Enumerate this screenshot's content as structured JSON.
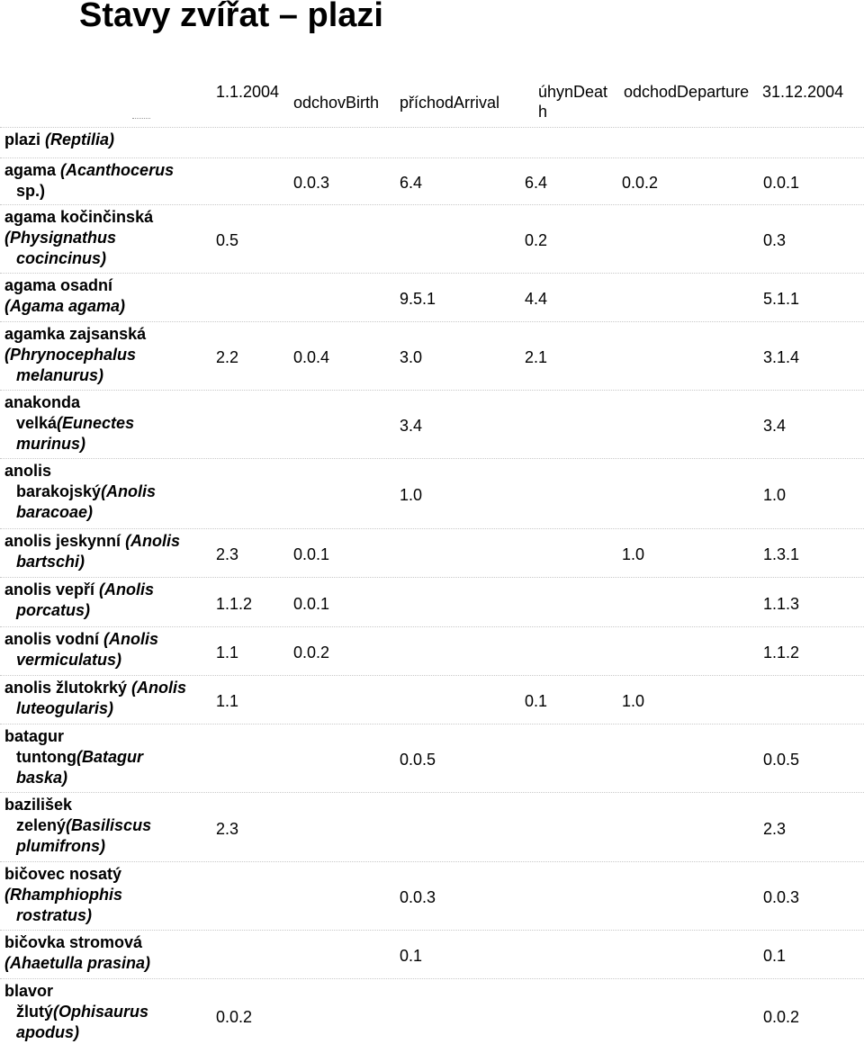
{
  "page": {
    "title": "Stavy zvířat – plazi"
  },
  "header": {
    "start": "1.1.2004",
    "birth": "odchovBirth",
    "arrival": "příchodArrival",
    "death": "úhynDeath",
    "departure": "odchodDeparture",
    "end": "31.12.2004"
  },
  "rows": [
    {
      "name": "plazi (Reptilia)",
      "start": "",
      "birth": "",
      "arrival": "",
      "death": "",
      "departure": "",
      "end": ""
    },
    {
      "name": "agama (Acanthocerus sp.)",
      "start": "",
      "birth": "0.0.3",
      "arrival": "6.4",
      "death": "6.4",
      "departure": "0.0.2",
      "end": "0.0.1"
    },
    {
      "name": "agama kočinčinská (Physignathus cocincinus)",
      "start": "0.5",
      "birth": "",
      "arrival": "",
      "death": "0.2",
      "departure": "",
      "end": "0.3"
    },
    {
      "name": "agama osadní (Agama agama)",
      "start": "",
      "birth": "",
      "arrival": "9.5.1",
      "death": "4.4",
      "departure": "",
      "end": "5.1.1"
    },
    {
      "name": "agamka zajsanská (Phrynocephalus melanurus)",
      "start": "2.2",
      "birth": "0.0.4",
      "arrival": "3.0",
      "death": "2.1",
      "departure": "",
      "end": "3.1.4"
    },
    {
      "name": "anakonda velká(Eunectes murinus)",
      "start": "",
      "birth": "",
      "arrival": "3.4",
      "death": "",
      "departure": "",
      "end": "3.4"
    },
    {
      "name": "anolis barakojský(Anolis baracoae)",
      "start": "",
      "birth": "",
      "arrival": "1.0",
      "death": "",
      "departure": "",
      "end": "1.0"
    },
    {
      "name": "anolis jeskynní (Anolis bartschi)",
      "start": "2.3",
      "birth": "0.0.1",
      "arrival": "",
      "death": "",
      "departure": "1.0",
      "end": "1.3.1"
    },
    {
      "name": "anolis vepří (Anolis porcatus)",
      "start": "1.1.2",
      "birth": "0.0.1",
      "arrival": "",
      "death": "",
      "departure": "",
      "end": "1.1.3"
    },
    {
      "name": "anolis vodní (Anolis vermiculatus)",
      "start": "1.1",
      "birth": "0.0.2",
      "arrival": "",
      "death": "",
      "departure": "",
      "end": "1.1.2"
    },
    {
      "name": "anolis žlutokrký (Anolis luteogularis)",
      "start": "1.1",
      "birth": "",
      "arrival": "",
      "death": "0.1",
      "departure": "1.0",
      "end": ""
    },
    {
      "name": "batagur tuntong(Batagur baska)",
      "start": "",
      "birth": "",
      "arrival": "0.0.5",
      "death": "",
      "departure": "",
      "end": "0.0.5"
    },
    {
      "name": "bazilišek zelený(Basiliscus plumifrons)",
      "start": "2.3",
      "birth": "",
      "arrival": "",
      "death": "",
      "departure": "",
      "end": "2.3"
    },
    {
      "name": "bičovec nosatý (Rhamphiophis rostratus)",
      "start": "",
      "birth": "",
      "arrival": "0.0.3",
      "death": "",
      "departure": "",
      "end": "0.0.3"
    },
    {
      "name": "bičovka stromová (Ahaetulla prasina)",
      "start": "",
      "birth": "",
      "arrival": "0.1",
      "death": "",
      "departure": "",
      "end": "0.1"
    },
    {
      "name": "blavor žlutý(Ophisaurus apodus)",
      "start": "0.0.2",
      "birth": "",
      "arrival": "",
      "death": "",
      "departure": "",
      "end": "0.0.2"
    }
  ]
}
